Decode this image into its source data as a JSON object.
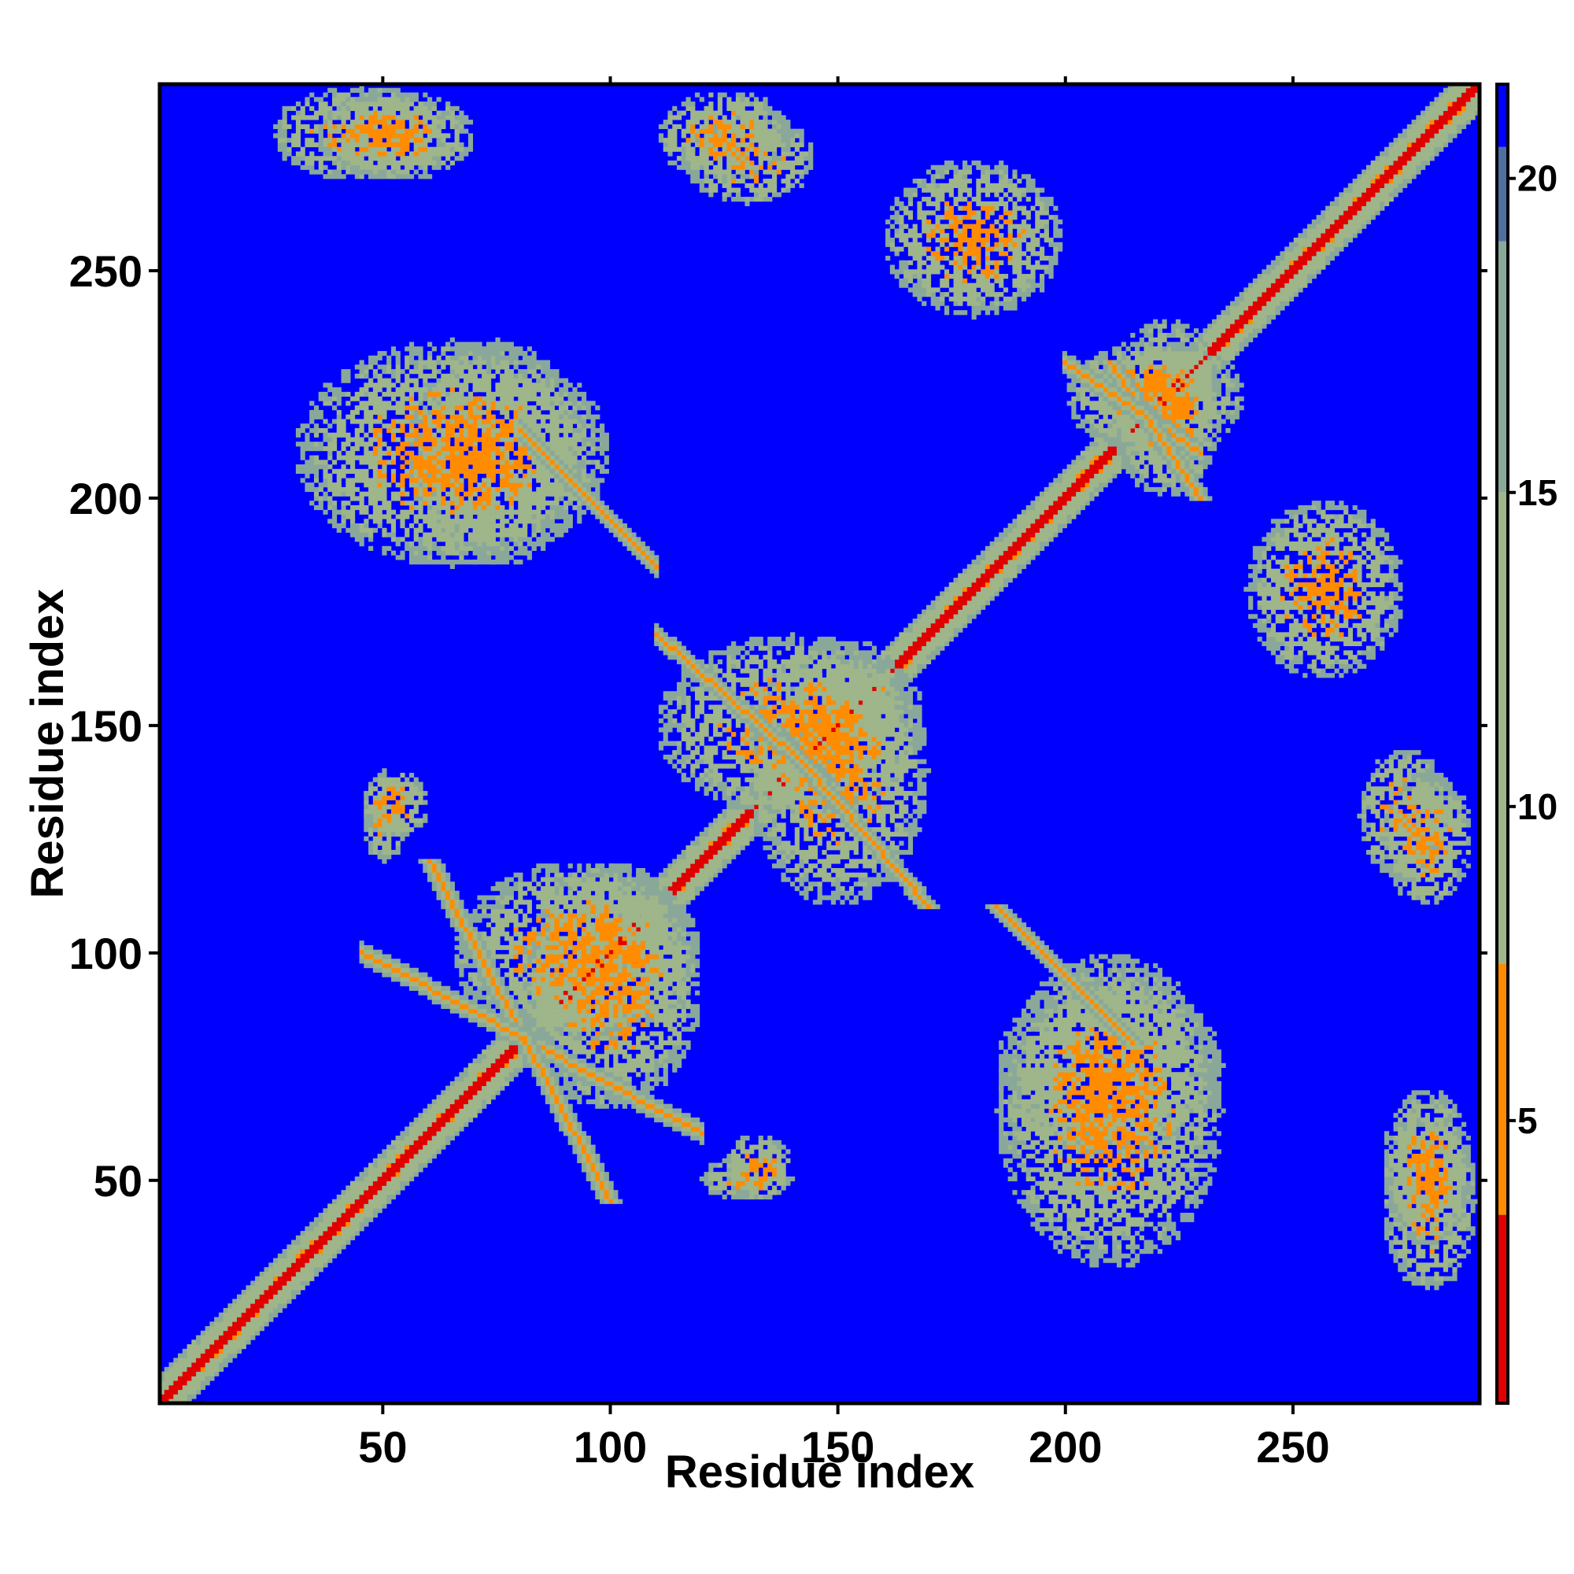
{
  "chart_data": {
    "type": "heatmap",
    "title": "",
    "xlabel": "Residue index",
    "ylabel": "Residue index",
    "xlim": [
      1,
      291
    ],
    "ylim": [
      1,
      291
    ],
    "x_ticks": [
      50,
      100,
      150,
      200,
      250
    ],
    "y_ticks": [
      50,
      100,
      150,
      200,
      250
    ],
    "colorbar": {
      "ticks": [
        5,
        10,
        15,
        20
      ],
      "range": [
        0.5,
        21.5
      ],
      "colors": {
        "low": "#e00000",
        "mid_low": "#ff8c00",
        "mid": "#9fb58a",
        "high": "#4f6fa0",
        "background": "#0000ff"
      }
    },
    "description_of_contacts": {
      "diagonal": "dense distance < 5 along residues 1-291",
      "clusters": [
        {
          "x": [
            25,
            65
          ],
          "y": [
            270,
            291
          ],
          "level": "8-12"
        },
        {
          "x": [
            115,
            145
          ],
          "y": [
            265,
            285
          ],
          "level": "8-12"
        },
        {
          "x": [
            55,
            95
          ],
          "y": [
            185,
            235
          ],
          "level": "6-12"
        },
        {
          "x": [
            80,
            120
          ],
          "y": [
            65,
            120
          ],
          "level": "6-12"
        },
        {
          "x": [
            130,
            170
          ],
          "y": [
            110,
            170
          ],
          "level": "5-12"
        },
        {
          "x": [
            185,
            235
          ],
          "y": [
            30,
            100
          ],
          "level": "6-13"
        },
        {
          "x": [
            240,
            275
          ],
          "y": [
            160,
            200
          ],
          "level": "6-13"
        },
        {
          "x": [
            210,
            235
          ],
          "y": [
            200,
            240
          ],
          "level": "5-12"
        },
        {
          "x": [
            270,
            290
          ],
          "y": [
            35,
            70
          ],
          "level": "6-13"
        },
        {
          "x": [
            270,
            290
          ],
          "y": [
            110,
            140
          ],
          "level": "6-12"
        },
        {
          "x": [
            45,
            55
          ],
          "y": [
            120,
            140
          ],
          "level": "6-12"
        },
        {
          "x": [
            125,
            140
          ],
          "y": [
            45,
            60
          ],
          "level": "6-12"
        }
      ]
    }
  }
}
